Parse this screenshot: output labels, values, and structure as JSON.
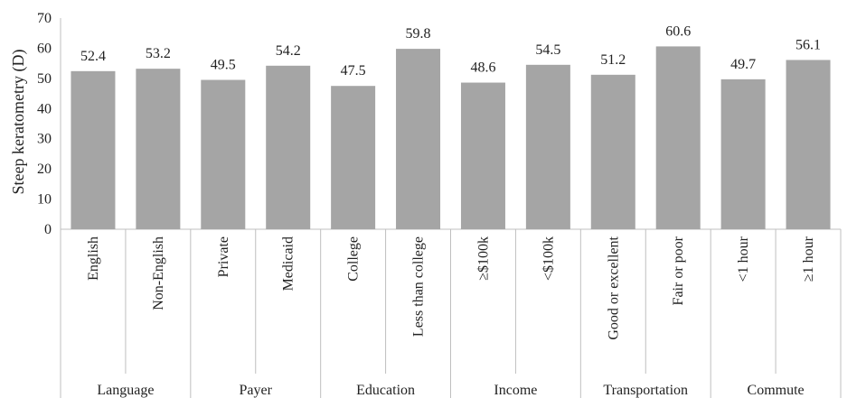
{
  "chart_data": {
    "type": "bar",
    "ylabel": "Steep keratometry (D)",
    "ylim": [
      0,
      70
    ],
    "yticks": [
      0,
      10,
      20,
      30,
      40,
      50,
      60,
      70
    ],
    "grid": false,
    "bar_color": "#a5a5a5",
    "groups": [
      {
        "name": "Language",
        "categories": [
          "English",
          "Non-English"
        ],
        "values": [
          52.4,
          53.2
        ],
        "value_labels": [
          "52.4",
          "53.2"
        ]
      },
      {
        "name": "Payer",
        "categories": [
          "Private",
          "Medicaid"
        ],
        "values": [
          49.5,
          54.2
        ],
        "value_labels": [
          "49.5",
          "54.2"
        ]
      },
      {
        "name": "Education",
        "categories": [
          "College",
          "Less than college"
        ],
        "values": [
          47.5,
          59.8
        ],
        "value_labels": [
          "47.5",
          "59.8"
        ]
      },
      {
        "name": "Income",
        "categories": [
          "≥$100k",
          "<$100k"
        ],
        "values": [
          48.6,
          54.5
        ],
        "value_labels": [
          "48.6",
          "54.5"
        ]
      },
      {
        "name": "Transportation",
        "categories": [
          "Good or excellent",
          "Fair or poor"
        ],
        "values": [
          51.2,
          60.6
        ],
        "value_labels": [
          "51.2",
          "60.6"
        ]
      },
      {
        "name": "Commute",
        "categories": [
          "<1 hour",
          "≥1 hour"
        ],
        "values": [
          49.7,
          56.1
        ],
        "value_labels": [
          "49.7",
          "56.1"
        ]
      }
    ]
  }
}
